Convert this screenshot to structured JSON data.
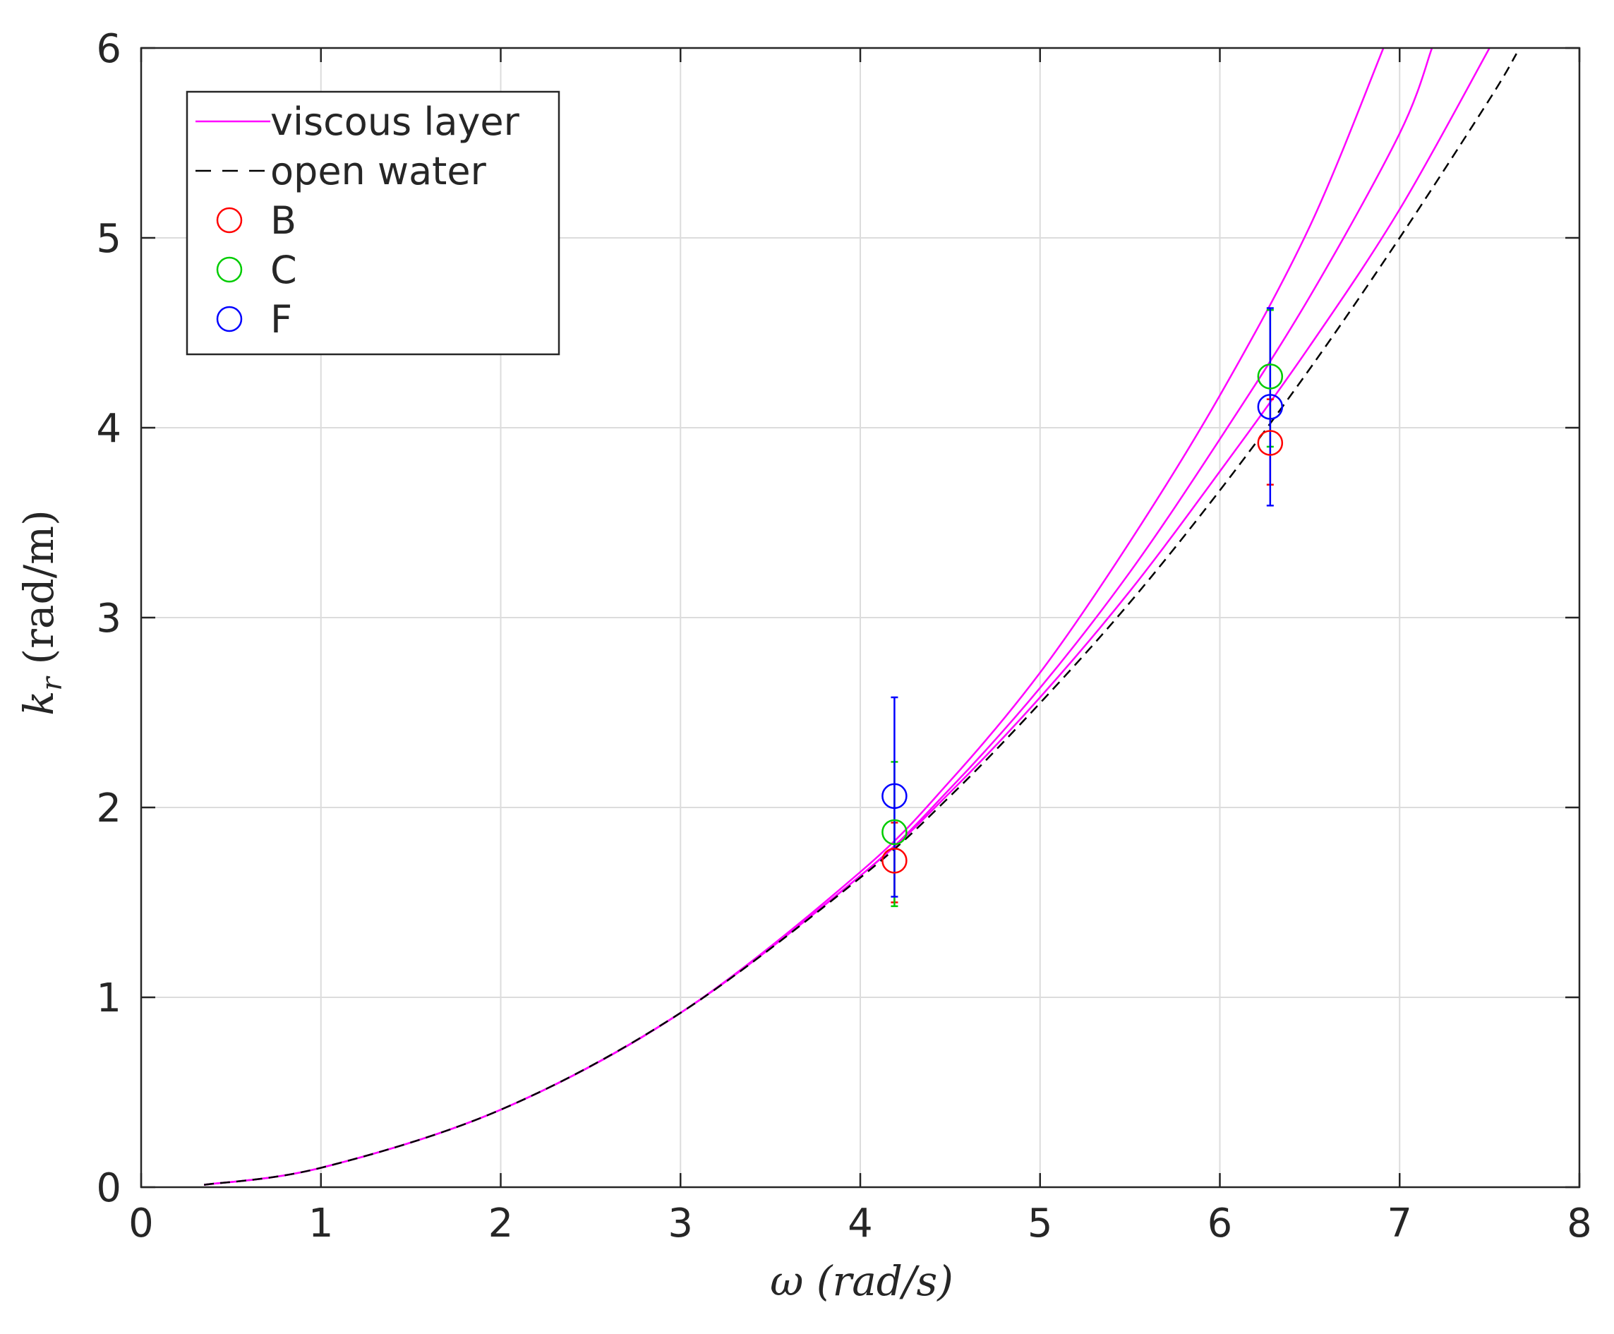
{
  "chart_data": {
    "type": "line",
    "xlabel": "ω (rad/s)",
    "ylabel": "kr (rad/m)",
    "ylabel_main": "k",
    "ylabel_sub": "r",
    "ylabel_unit": "(rad/m)",
    "xlim": [
      0,
      8
    ],
    "ylim": [
      0,
      6
    ],
    "xticks": [
      0,
      1,
      2,
      3,
      4,
      5,
      6,
      7,
      8
    ],
    "yticks": [
      0,
      1,
      2,
      3,
      4,
      5,
      6
    ],
    "grid": true,
    "legend_position": "top-left",
    "legend": [
      {
        "label": "viscous layer",
        "style": "line",
        "color": "#ff00ff"
      },
      {
        "label": "open water",
        "style": "dashed",
        "color": "#000000"
      },
      {
        "label": "B",
        "style": "circle",
        "color": "#ff0000"
      },
      {
        "label": "C",
        "style": "circle",
        "color": "#00cc00"
      },
      {
        "label": "F",
        "style": "circle",
        "color": "#0000ff"
      }
    ],
    "series": [
      {
        "name": "viscous layer",
        "kind": "curve",
        "color": "#ff00ff",
        "x": [
          0.35,
          1,
          2,
          3,
          4,
          4.5,
          5,
          5.5,
          6,
          6.5,
          6.91
        ],
        "y": [
          0.0125,
          0.102,
          0.408,
          0.918,
          1.66,
          2.14,
          2.71,
          3.4,
          4.17,
          5.06,
          6.0
        ]
      },
      {
        "name": "viscous layer",
        "kind": "curve",
        "color": "#ff00ff",
        "x": [
          0.35,
          1,
          2,
          3,
          4,
          4.5,
          5,
          5.5,
          6,
          6.5,
          7.0,
          7.18
        ],
        "y": [
          0.0125,
          0.102,
          0.408,
          0.918,
          1.64,
          2.1,
          2.63,
          3.24,
          3.94,
          4.69,
          5.55,
          6.0
        ]
      },
      {
        "name": "viscous layer",
        "kind": "curve",
        "color": "#ff00ff",
        "x": [
          0.35,
          1,
          2,
          3,
          4,
          4.5,
          5,
          5.5,
          6,
          6.5,
          7.0,
          7.5
        ],
        "y": [
          0.0125,
          0.102,
          0.408,
          0.918,
          1.64,
          2.08,
          2.58,
          3.14,
          3.77,
          4.43,
          5.15,
          6.0
        ]
      },
      {
        "name": "open water",
        "kind": "dashed",
        "color": "#000000",
        "x": [
          0.35,
          1,
          2,
          3,
          4,
          4.5,
          5,
          5.5,
          6,
          6.5,
          7.0,
          7.5,
          7.65
        ],
        "y": [
          0.0125,
          0.102,
          0.408,
          0.918,
          1.63,
          2.06,
          2.55,
          3.08,
          3.67,
          4.31,
          5.0,
          5.73,
          5.97
        ]
      },
      {
        "name": "B",
        "kind": "points",
        "color": "#ff0000",
        "x": [
          4.19,
          6.28
        ],
        "y": [
          1.72,
          3.92
        ],
        "err_low": [
          1.5,
          3.7
        ],
        "err_high": [
          1.92,
          4.15
        ]
      },
      {
        "name": "C",
        "kind": "points",
        "color": "#00cc00",
        "x": [
          4.19,
          6.28
        ],
        "y": [
          1.87,
          4.27
        ],
        "err_low": [
          1.48,
          3.9
        ],
        "err_high": [
          2.24,
          4.62
        ]
      },
      {
        "name": "F",
        "kind": "points",
        "color": "#0000ff",
        "x": [
          4.19,
          6.28
        ],
        "y": [
          2.06,
          4.11
        ],
        "err_low": [
          1.53,
          3.59
        ],
        "err_high": [
          2.58,
          4.63
        ]
      }
    ]
  }
}
